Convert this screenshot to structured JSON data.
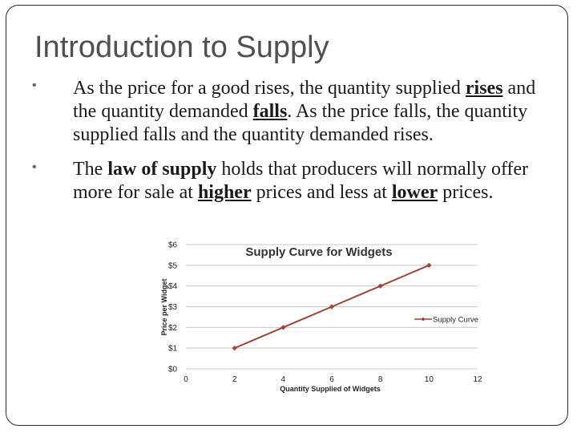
{
  "slide": {
    "title": "Introduction to Supply",
    "bullets": [
      {
        "marker": "•",
        "segments": [
          {
            "text": "As the price for a good rises, the quantity supplied ",
            "style": "plain"
          },
          {
            "text": "rises",
            "style": "bold-underline"
          },
          {
            "text": " and the quantity demanded ",
            "style": "plain"
          },
          {
            "text": "falls",
            "style": "bold-underline"
          },
          {
            "text": ". As the price falls, the quantity supplied falls and the quantity demanded rises.",
            "style": "plain"
          }
        ]
      },
      {
        "marker": "•",
        "segments": [
          {
            "text": "The ",
            "style": "plain"
          },
          {
            "text": "law of supply",
            "style": "bold"
          },
          {
            "text": " holds that producers will normally offer more for sale at ",
            "style": "plain"
          },
          {
            "text": "higher",
            "style": "bold-underline"
          },
          {
            "text": " prices and less at ",
            "style": "plain"
          },
          {
            "text": "lower",
            "style": "bold-underline"
          },
          {
            "text": " prices.",
            "style": "plain"
          }
        ]
      }
    ]
  },
  "chart_data": {
    "type": "scatter",
    "title": "Supply Curve for Widgets",
    "xlabel": "Quantity Supplied of Widgets",
    "ylabel": "Price per Widget",
    "xlim": [
      0,
      12
    ],
    "ylim": [
      0,
      6
    ],
    "x_ticks": [
      "0",
      "2",
      "4",
      "6",
      "8",
      "10",
      "12"
    ],
    "y_ticks": [
      "$0",
      "$1",
      "$2",
      "$3",
      "$4",
      "$5",
      "$6"
    ],
    "grid": "horizontal",
    "smoothed_line": true,
    "legend_position": "right",
    "series": [
      {
        "name": "Supply Curve",
        "color": "#a0453a",
        "points": [
          {
            "x": 2,
            "y": 1
          },
          {
            "x": 4,
            "y": 2
          },
          {
            "x": 6,
            "y": 3
          },
          {
            "x": 8,
            "y": 4
          },
          {
            "x": 10,
            "y": 5
          }
        ]
      }
    ]
  }
}
